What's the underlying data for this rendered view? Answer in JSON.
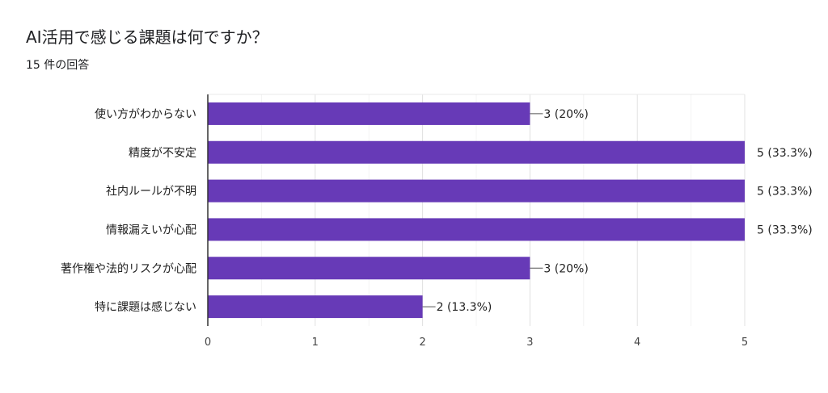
{
  "header": {
    "title": "AI活用で感じる課題は何ですか？",
    "subtitle": "15 件の回答"
  },
  "chart_data": {
    "type": "bar",
    "orientation": "horizontal",
    "categories": [
      "使い方がわからない",
      "精度が不安定",
      "社内ルールが不明",
      "情報漏えいが心配",
      "著作権や法的リスクが心配",
      "特に課題は感じない"
    ],
    "values": [
      3,
      5,
      5,
      5,
      3,
      2
    ],
    "data_labels": [
      "3 (20%)",
      "5 (33.3%)",
      "5 (33.3%)",
      "5 (33.3%)",
      "3 (20%)",
      "2 (13.3%)"
    ],
    "x_ticks": [
      0,
      1,
      2,
      3,
      4,
      5
    ],
    "xlim": [
      0,
      5
    ],
    "grid": true,
    "bar_color": "#673ab7"
  }
}
